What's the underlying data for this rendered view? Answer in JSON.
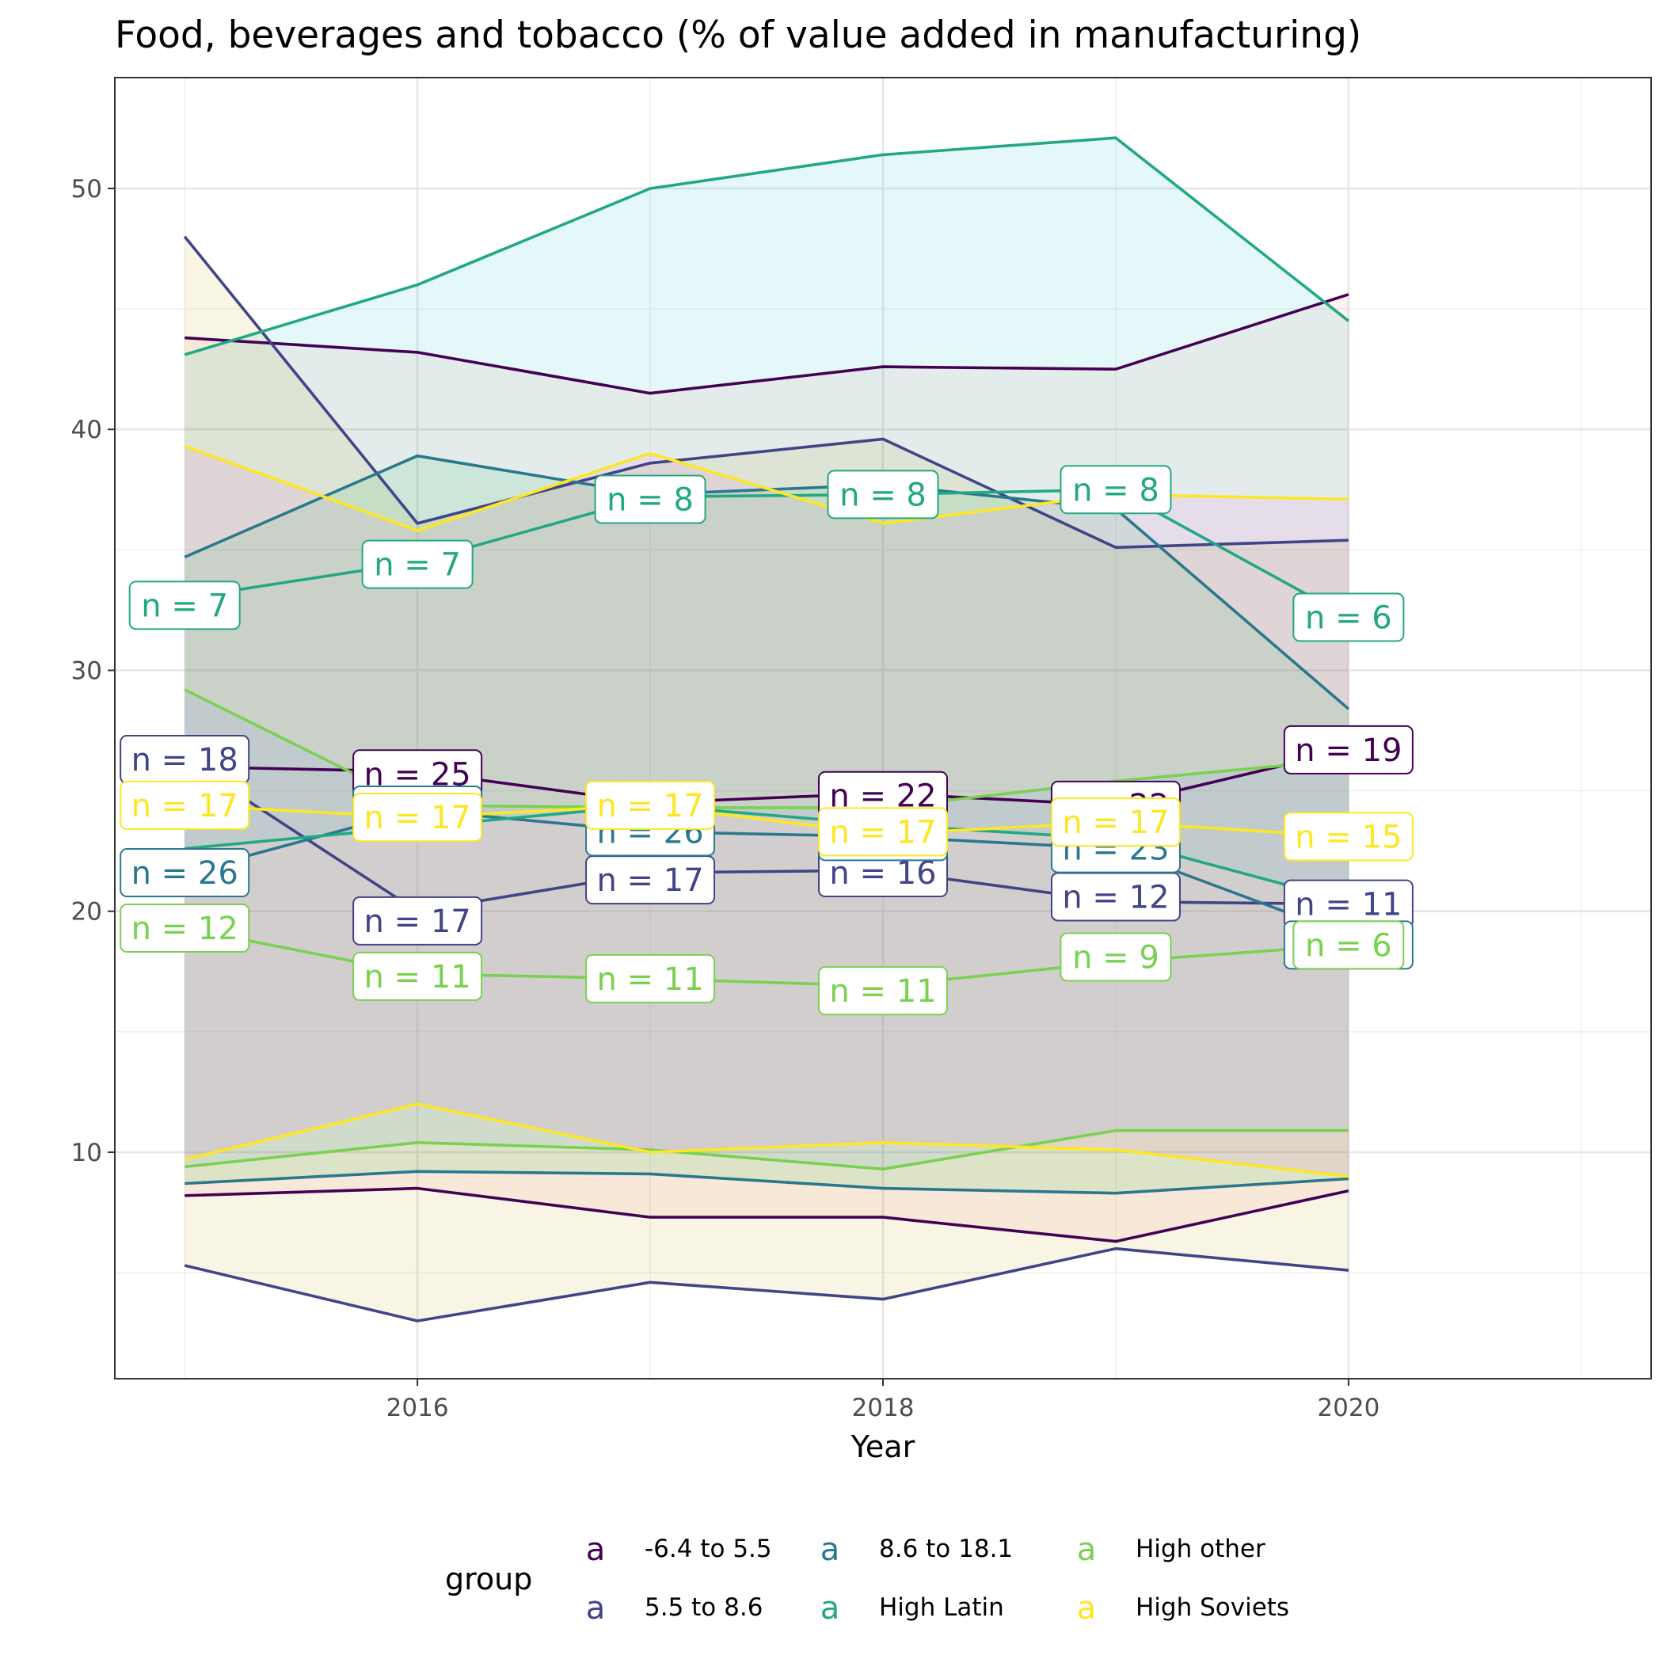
{
  "chart_data": {
    "type": "line",
    "title": "Food, beverages and tobacco (% of value added in manufacturing)",
    "xlabel": "Year",
    "ylabel": "",
    "xlim": [
      2014.7,
      2021.3
    ],
    "ylim": [
      0.6,
      54.6
    ],
    "x_ticks": [
      2016,
      2018,
      2020
    ],
    "x_tick_labels": [
      "2016",
      "2018",
      "2020"
    ],
    "y_ticks": [
      10,
      20,
      30,
      40,
      50
    ],
    "y_tick_labels": [
      "10",
      "20",
      "30",
      "40",
      "50"
    ],
    "grid": true,
    "legend": {
      "title": "group",
      "position": "bottom",
      "key_glyph": "a",
      "entries": [
        "-6.4 to 5.5",
        "5.5 to 8.6",
        "8.6 to 18.1",
        "High Latin",
        "High other",
        "High Soviets"
      ]
    },
    "x": [
      2015,
      2016,
      2017,
      2018,
      2019,
      2020
    ],
    "series": [
      {
        "name": "-6.4 to 5.5",
        "color": "#440154",
        "ribbon_color": "#F8766D",
        "mean": [
          26.0,
          25.8,
          24.5,
          24.9,
          24.4,
          26.7
        ],
        "upper": [
          43.8,
          43.2,
          41.5,
          42.6,
          42.5,
          45.6
        ],
        "lower": [
          8.2,
          8.5,
          7.3,
          7.3,
          6.3,
          8.4
        ],
        "n_labels": [
          "",
          "n = 25",
          "",
          "n = 22",
          "n = 22",
          "n = 19"
        ],
        "n_label_y": [
          null,
          25.7,
          null,
          24.8,
          24.4,
          26.7
        ]
      },
      {
        "name": "5.5 to 8.6",
        "color": "#414487",
        "ribbon_color": "#B79F00",
        "mean": [
          26.3,
          20.0,
          21.6,
          21.7,
          20.4,
          20.3
        ],
        "upper": [
          48.0,
          36.1,
          38.6,
          39.6,
          35.1,
          35.4
        ],
        "lower": [
          5.3,
          3.0,
          4.6,
          3.9,
          6.0,
          5.1
        ],
        "n_labels": [
          "n = 18",
          "n = 17",
          "n = 17",
          "n = 16",
          "n = 12",
          "n = 11"
        ],
        "n_label_y": [
          26.3,
          19.6,
          21.3,
          21.6,
          20.6,
          20.3
        ]
      },
      {
        "name": "8.6 to 18.1",
        "color": "#2A788E",
        "ribbon_color": "#00BA38",
        "mean": [
          21.6,
          24.2,
          23.3,
          23.1,
          22.6,
          19.0
        ],
        "upper": [
          34.7,
          38.9,
          37.3,
          37.7,
          36.7,
          28.4
        ],
        "lower": [
          8.7,
          9.2,
          9.1,
          8.5,
          8.3,
          8.9
        ],
        "n_labels": [
          "n = 26",
          "n = 24",
          "n = 26",
          "n = 23",
          "n = 23",
          "n = 11"
        ],
        "n_label_y": [
          21.6,
          24.2,
          23.3,
          23.1,
          22.6,
          18.6
        ]
      },
      {
        "name": "High Latin",
        "color": "#22A884",
        "ribbon_color": "#00BFC4",
        "mean": [
          33.0,
          34.5,
          37.2,
          37.3,
          37.5,
          32.2
        ],
        "upper": [
          43.1,
          46.0,
          50.0,
          51.4,
          52.1,
          44.5
        ],
        "lower": [
          22.6,
          23.5,
          24.4,
          23.6,
          23.0,
          20.4
        ],
        "n_labels": [
          "n = 7",
          "n = 7",
          "n = 8",
          "n = 8",
          "n = 8",
          "n = 6"
        ],
        "n_label_y": [
          32.7,
          34.4,
          37.1,
          37.3,
          37.5,
          32.2
        ]
      },
      {
        "name": "High other",
        "color": "#7AD151",
        "ribbon_color": "#619CFF",
        "mean": [
          19.3,
          17.4,
          17.2,
          16.9,
          17.9,
          18.6
        ],
        "upper": [
          29.2,
          24.4,
          24.3,
          24.3,
          25.4,
          26.3
        ],
        "lower": [
          9.4,
          10.4,
          10.1,
          9.3,
          10.9,
          10.9
        ],
        "n_labels": [
          "n = 12",
          "n = 11",
          "n = 11",
          "n = 11",
          "n = 9",
          "n = 6"
        ],
        "n_label_y": [
          19.3,
          17.3,
          17.2,
          16.7,
          18.1,
          18.6
        ]
      },
      {
        "name": "High Soviets",
        "color": "#FDE725",
        "ribbon_color": "#F564E3",
        "mean": [
          24.4,
          23.9,
          24.4,
          23.2,
          23.7,
          23.1
        ],
        "upper": [
          39.3,
          35.8,
          39.0,
          36.1,
          37.3,
          37.1
        ],
        "lower": [
          9.7,
          12.0,
          10.0,
          10.4,
          10.1,
          9.0
        ],
        "n_labels": [
          "n = 17",
          "n = 17",
          "n = 17",
          "n = 17",
          "n = 17",
          "n = 15"
        ],
        "n_label_y": [
          24.4,
          23.9,
          24.4,
          23.3,
          23.7,
          23.1
        ]
      }
    ]
  }
}
